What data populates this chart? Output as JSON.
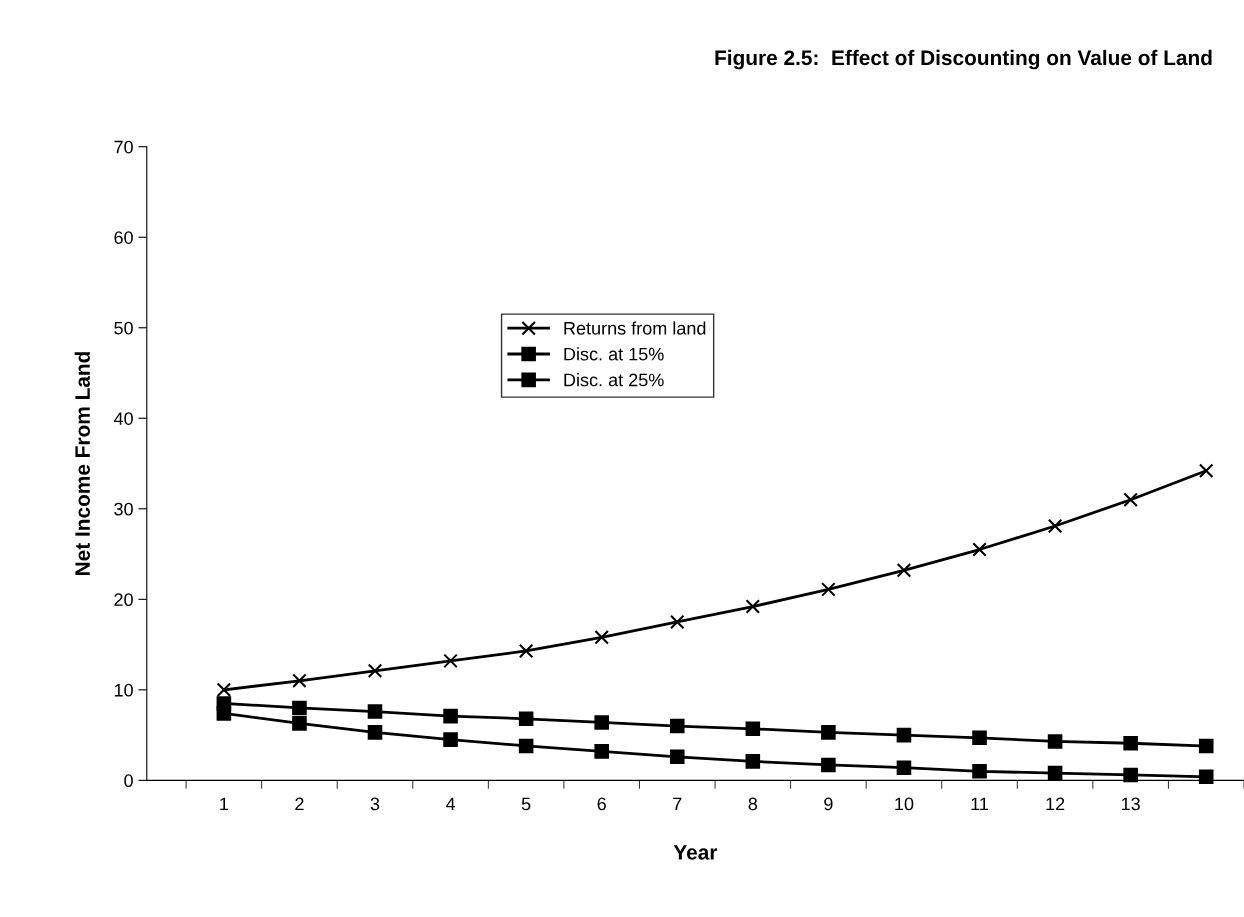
{
  "chart_data": {
    "type": "line",
    "title": "Figure 2.5:  Effect of Discounting on Value of Land",
    "xlabel": "Year",
    "ylabel": "Net Income From Land",
    "categories": [
      "1",
      "2",
      "3",
      "4",
      "5",
      "6",
      "7",
      "8",
      "9",
      "10",
      "11",
      "12",
      "13",
      null
    ],
    "series": [
      {
        "name": "Returns from land",
        "color": "#000000",
        "marker": "cross",
        "values": [
          10.0,
          11.0,
          12.1,
          13.2,
          14.3,
          15.8,
          17.5,
          19.2,
          21.1,
          23.2,
          25.5,
          28.1,
          31.0,
          34.2
        ]
      },
      {
        "name": "Disc. at 15%",
        "color": "#000000",
        "marker": "square",
        "values": [
          8.5,
          8.0,
          7.6,
          7.1,
          6.8,
          6.4,
          6.0,
          5.7,
          5.3,
          5.0,
          4.7,
          4.3,
          4.1,
          3.8
        ]
      },
      {
        "name": "Disc. at 25%",
        "color": "#000000",
        "marker": "square",
        "values": [
          7.4,
          6.3,
          5.3,
          4.5,
          3.8,
          3.2,
          2.6,
          2.1,
          1.7,
          1.4,
          1.0,
          0.8,
          0.6,
          0.4
        ]
      }
    ],
    "ylim": [
      0,
      70
    ],
    "yticks": [
      0,
      10,
      20,
      30,
      40,
      50,
      60,
      70
    ],
    "grid": false,
    "legend": "upper center",
    "line_style": "solid"
  }
}
